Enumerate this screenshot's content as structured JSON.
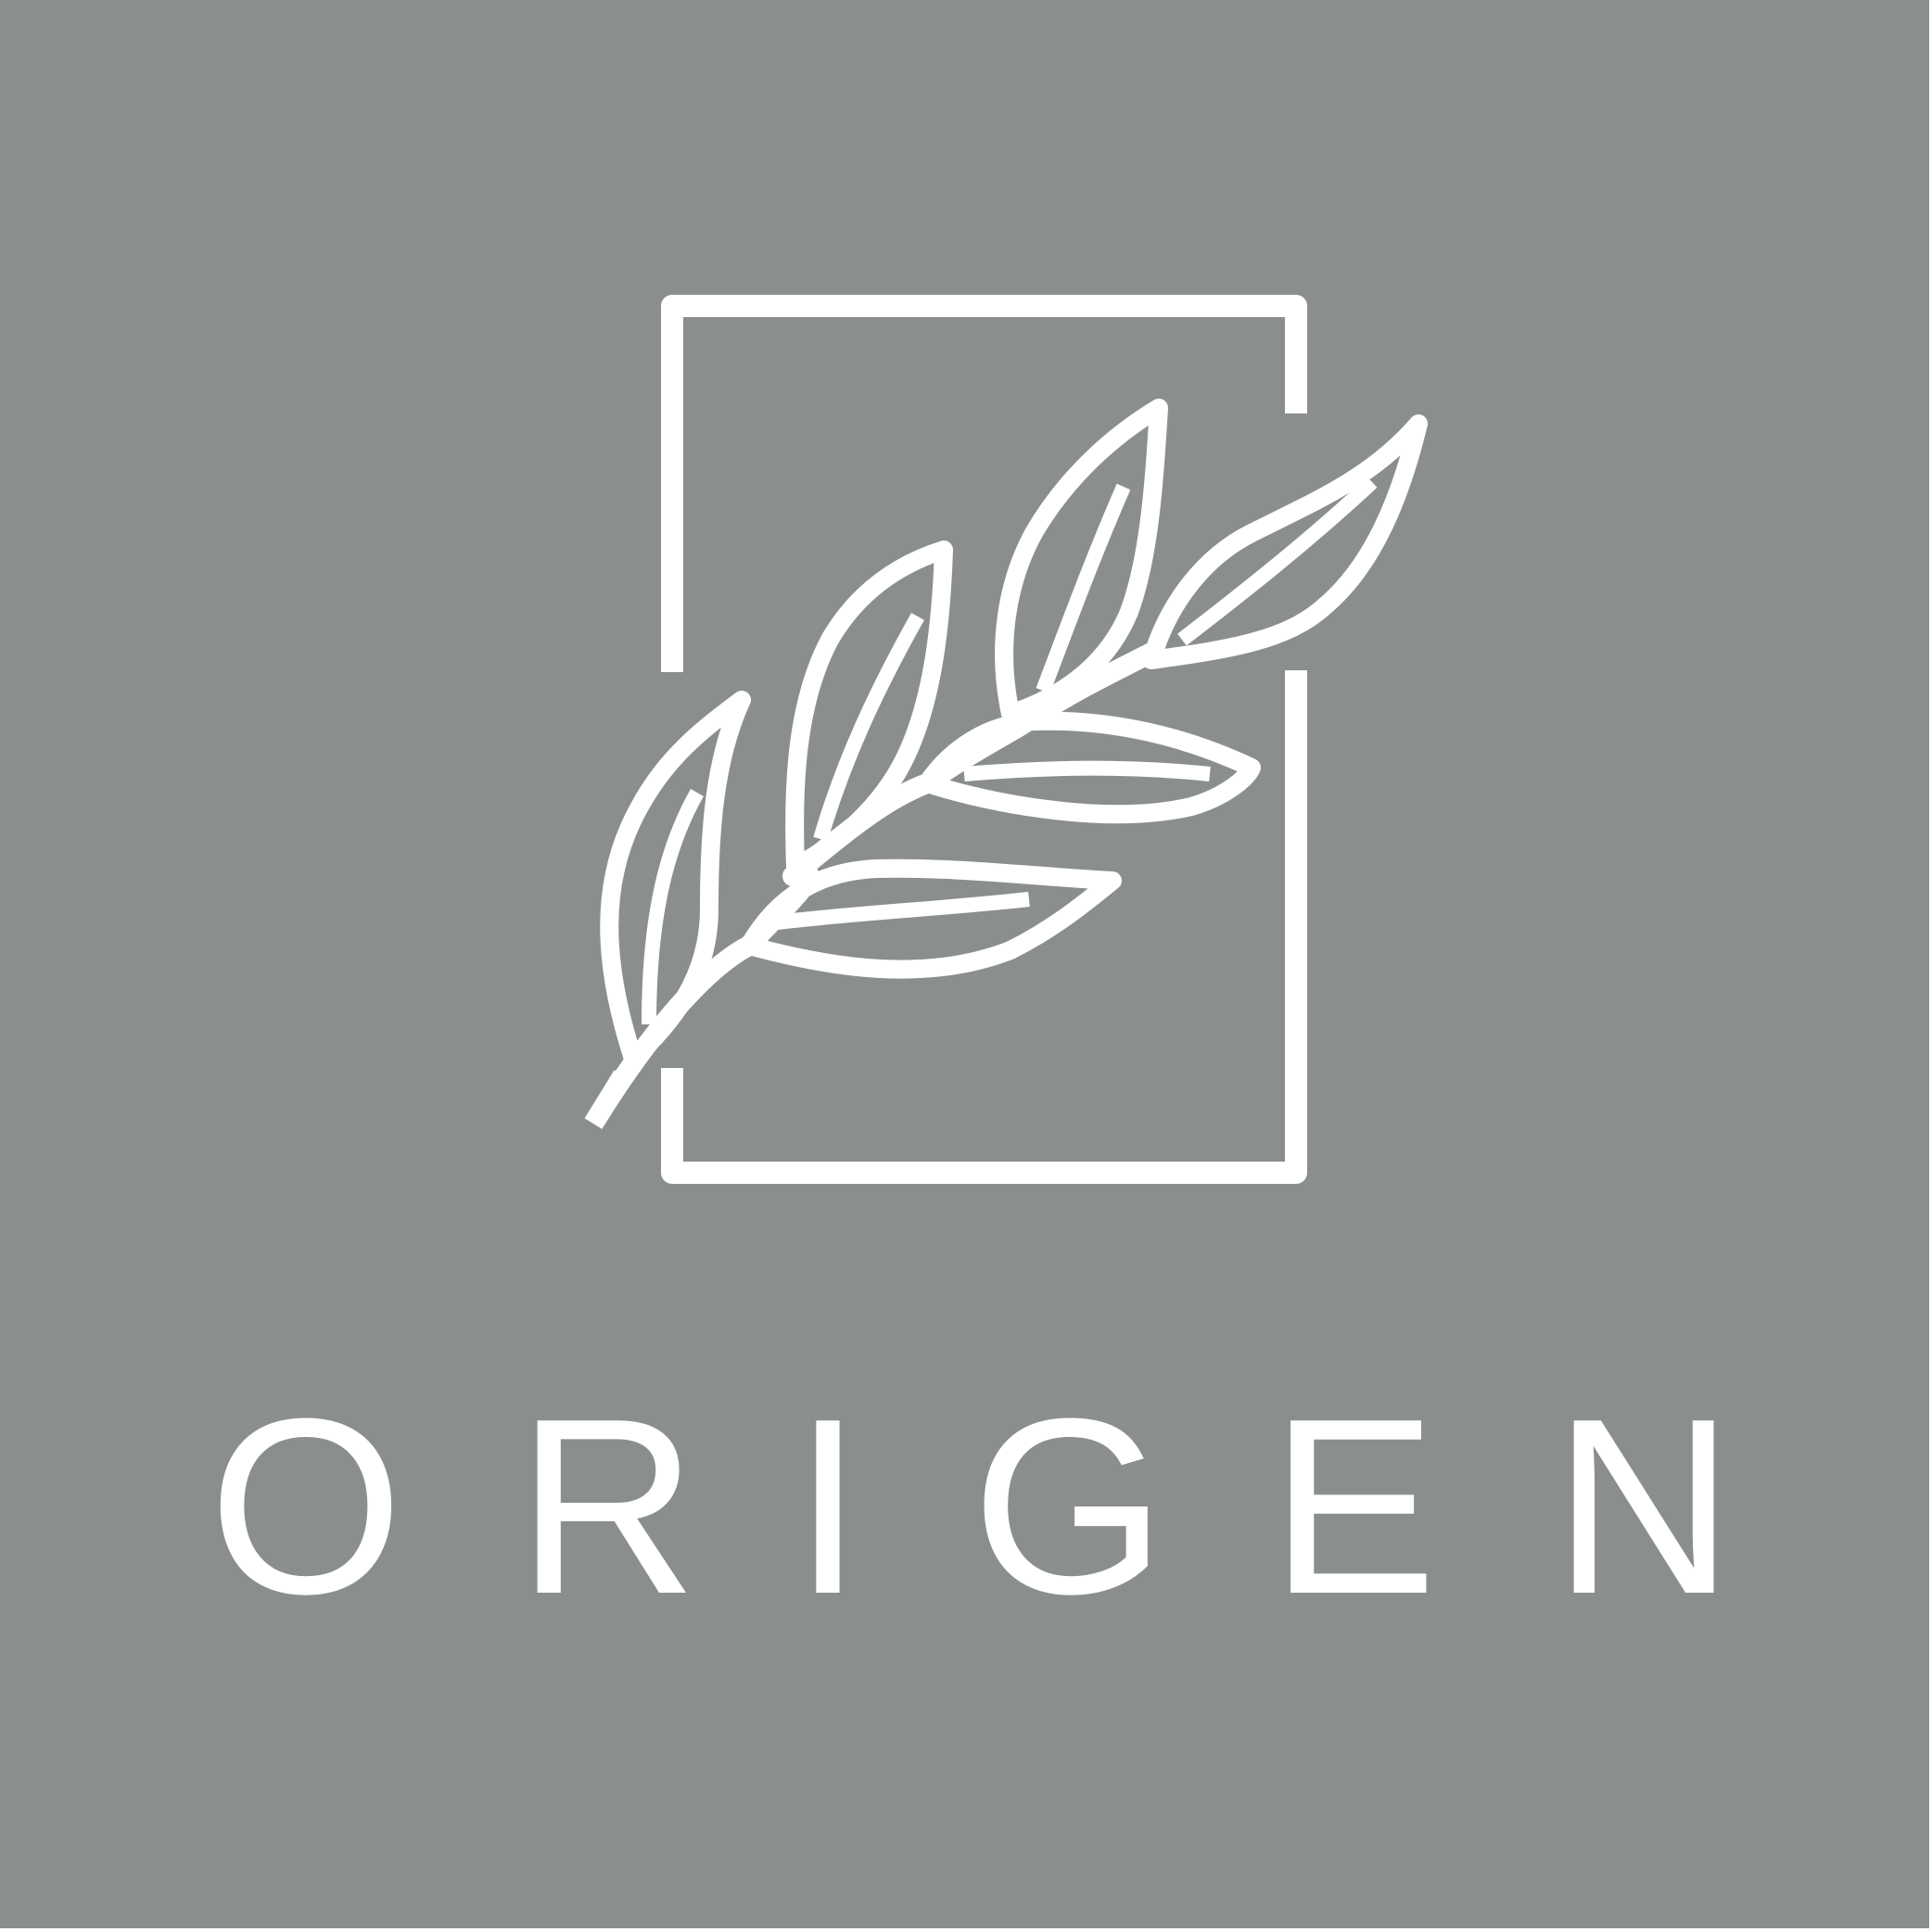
{
  "brand": {
    "name": "ORIGEN",
    "letters": [
      "O",
      "R",
      "I",
      "G",
      "E",
      "N"
    ]
  },
  "colors": {
    "background": "#8a8f8e",
    "foreground": "#ffffff",
    "page_border": "#ffffff"
  },
  "icons": {
    "emblem": "olive-branch-in-open-frame-icon"
  }
}
